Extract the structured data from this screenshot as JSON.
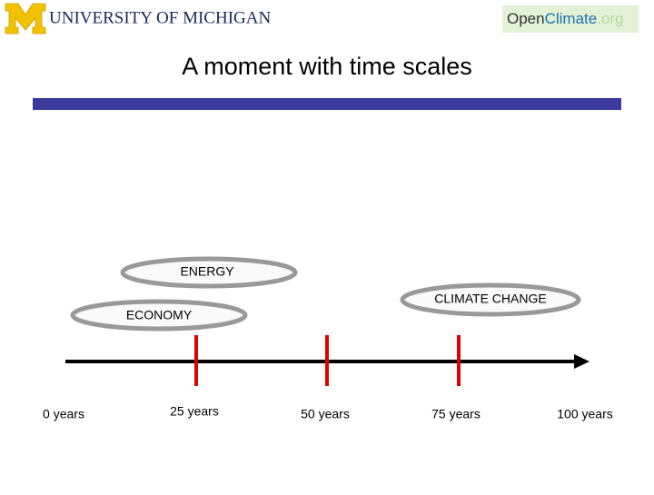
{
  "header": {
    "university": "UNIVERSITY OF MICHIGAN",
    "site": {
      "parts": [
        "Open",
        "Climate",
        ".org"
      ]
    }
  },
  "title": "A moment with time scales",
  "ellipses": [
    {
      "label": "ENERGY"
    },
    {
      "label": "CLIMATE CHANGE"
    },
    {
      "label": "ECONOMY"
    }
  ],
  "timeline": {
    "labels": [
      "0 years",
      "25 years",
      "50 years",
      "75 years",
      "100 years"
    ]
  }
}
